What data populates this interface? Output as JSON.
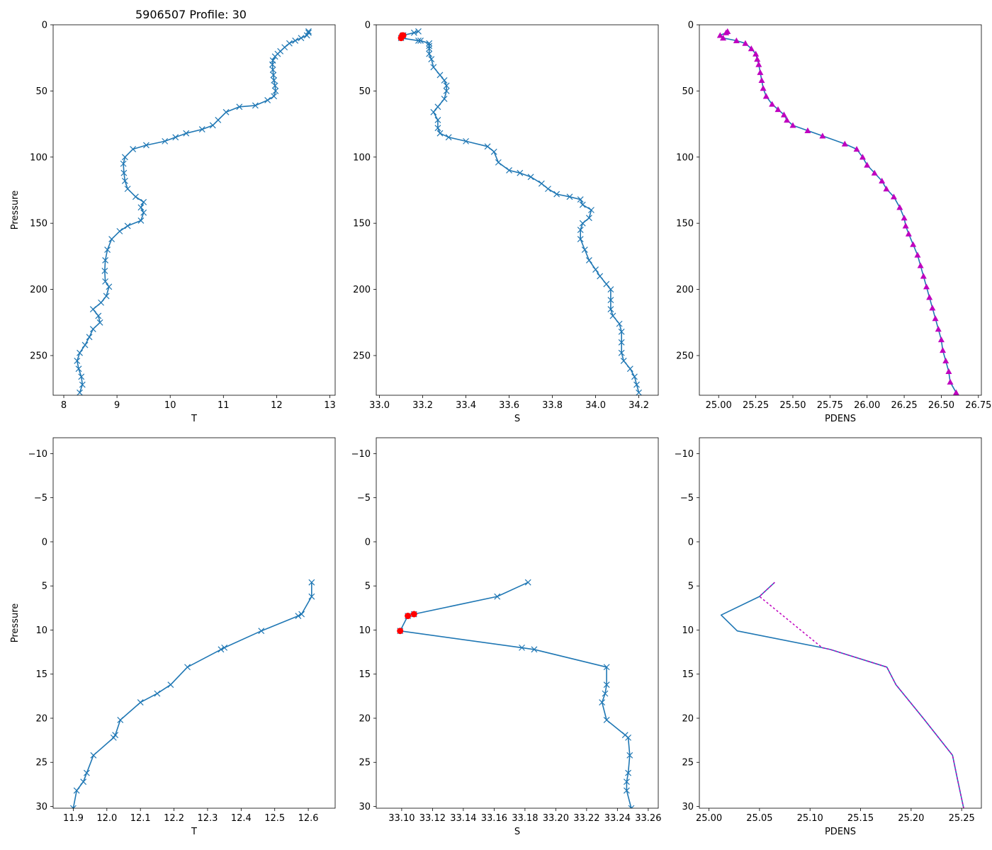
{
  "figure_title": "5906507 Profile: 30",
  "colors": {
    "line": "#1f77b4",
    "flag": "#ff0000",
    "density": "#bf00bf",
    "axis": "#000000"
  },
  "chart_data": [
    {
      "id": "top-temperature",
      "type": "line",
      "xlabel": "T",
      "ylabel": "Pressure",
      "xlim": [
        7.8,
        13.1
      ],
      "ylim": [
        280,
        0
      ],
      "xticks": [
        8,
        9,
        10,
        11,
        12,
        13
      ],
      "yticks": [
        0,
        50,
        100,
        150,
        200,
        250
      ],
      "x_tick_labels": [
        "8",
        "9",
        "10",
        "11",
        "12",
        "13"
      ],
      "y_tick_labels": [
        "0",
        "50",
        "100",
        "150",
        "200",
        "250"
      ],
      "marker": "x",
      "points": [
        [
          12.6,
          5
        ],
        [
          12.6,
          6
        ],
        [
          12.57,
          8
        ],
        [
          12.46,
          10
        ],
        [
          12.35,
          12
        ],
        [
          12.24,
          14
        ],
        [
          12.15,
          17
        ],
        [
          12.07,
          20
        ],
        [
          12.02,
          22
        ],
        [
          11.97,
          24
        ],
        [
          11.93,
          27
        ],
        [
          11.92,
          30
        ],
        [
          11.93,
          34
        ],
        [
          11.94,
          38
        ],
        [
          11.95,
          42
        ],
        [
          11.97,
          46
        ],
        [
          11.98,
          50
        ],
        [
          11.95,
          54
        ],
        [
          11.83,
          57
        ],
        [
          11.6,
          61
        ],
        [
          11.3,
          62
        ],
        [
          11.05,
          66
        ],
        [
          10.9,
          72
        ],
        [
          10.8,
          76
        ],
        [
          10.6,
          79
        ],
        [
          10.3,
          82
        ],
        [
          10.1,
          85
        ],
        [
          9.9,
          88
        ],
        [
          9.55,
          91
        ],
        [
          9.3,
          94
        ],
        [
          9.15,
          100
        ],
        [
          9.12,
          105
        ],
        [
          9.13,
          112
        ],
        [
          9.15,
          118
        ],
        [
          9.2,
          124
        ],
        [
          9.35,
          130
        ],
        [
          9.5,
          134
        ],
        [
          9.45,
          138
        ],
        [
          9.5,
          142
        ],
        [
          9.45,
          148
        ],
        [
          9.2,
          152
        ],
        [
          9.05,
          156
        ],
        [
          8.9,
          162
        ],
        [
          8.82,
          170
        ],
        [
          8.78,
          178
        ],
        [
          8.77,
          186
        ],
        [
          8.78,
          194
        ],
        [
          8.85,
          198
        ],
        [
          8.8,
          205
        ],
        [
          8.7,
          210
        ],
        [
          8.55,
          215
        ],
        [
          8.65,
          220
        ],
        [
          8.68,
          225
        ],
        [
          8.55,
          230
        ],
        [
          8.48,
          236
        ],
        [
          8.4,
          242
        ],
        [
          8.3,
          248
        ],
        [
          8.25,
          254
        ],
        [
          8.28,
          260
        ],
        [
          8.33,
          266
        ],
        [
          8.35,
          272
        ],
        [
          8.3,
          278
        ]
      ],
      "flagged": []
    },
    {
      "id": "top-salinity",
      "type": "line",
      "xlabel": "S",
      "ylabel": "",
      "xlim": [
        32.985,
        34.29
      ],
      "ylim": [
        280,
        0
      ],
      "xticks": [
        33.0,
        33.2,
        33.4,
        33.6,
        33.8,
        34.0,
        34.2
      ],
      "yticks": [
        0,
        50,
        100,
        150,
        200,
        250
      ],
      "x_tick_labels": [
        "33.0",
        "33.2",
        "33.4",
        "33.6",
        "33.8",
        "34.0",
        "34.2"
      ],
      "y_tick_labels": [
        "0",
        "50",
        "100",
        "150",
        "200",
        "250"
      ],
      "marker": "x",
      "points": [
        [
          33.18,
          5
        ],
        [
          33.16,
          6
        ],
        [
          33.11,
          8
        ],
        [
          33.1,
          10
        ],
        [
          33.18,
          12
        ],
        [
          33.19,
          12
        ],
        [
          33.23,
          14
        ],
        [
          33.23,
          16
        ],
        [
          33.23,
          18
        ],
        [
          33.23,
          22
        ],
        [
          33.24,
          26
        ],
        [
          33.25,
          32
        ],
        [
          33.28,
          38
        ],
        [
          33.3,
          42
        ],
        [
          33.31,
          46
        ],
        [
          33.31,
          50
        ],
        [
          33.3,
          56
        ],
        [
          33.27,
          62
        ],
        [
          33.25,
          66
        ],
        [
          33.27,
          72
        ],
        [
          33.27,
          78
        ],
        [
          33.28,
          82
        ],
        [
          33.32,
          85
        ],
        [
          33.4,
          88
        ],
        [
          33.5,
          92
        ],
        [
          33.53,
          96
        ],
        [
          33.55,
          104
        ],
        [
          33.6,
          110
        ],
        [
          33.65,
          112
        ],
        [
          33.7,
          115
        ],
        [
          33.75,
          120
        ],
        [
          33.78,
          124
        ],
        [
          33.82,
          128
        ],
        [
          33.88,
          130
        ],
        [
          33.93,
          132
        ],
        [
          33.94,
          136
        ],
        [
          33.98,
          140
        ],
        [
          33.97,
          146
        ],
        [
          33.94,
          150
        ],
        [
          33.93,
          155
        ],
        [
          33.93,
          162
        ],
        [
          33.95,
          170
        ],
        [
          33.97,
          178
        ],
        [
          34.0,
          185
        ],
        [
          34.02,
          190
        ],
        [
          34.05,
          196
        ],
        [
          34.07,
          200
        ],
        [
          34.07,
          208
        ],
        [
          34.07,
          215
        ],
        [
          34.08,
          220
        ],
        [
          34.11,
          226
        ],
        [
          34.12,
          232
        ],
        [
          34.12,
          240
        ],
        [
          34.12,
          248
        ],
        [
          34.13,
          254
        ],
        [
          34.16,
          260
        ],
        [
          34.18,
          266
        ],
        [
          34.19,
          272
        ],
        [
          34.2,
          278
        ]
      ],
      "flagged": [
        [
          33.11,
          8
        ],
        [
          33.105,
          8
        ],
        [
          33.1,
          10
        ]
      ]
    },
    {
      "id": "top-density",
      "type": "line",
      "xlabel": "PDENS",
      "ylabel": "",
      "xlim": [
        24.87,
        26.77
      ],
      "ylim": [
        280,
        0
      ],
      "xticks": [
        25.0,
        25.25,
        25.5,
        25.75,
        26.0,
        26.25,
        26.5,
        26.75
      ],
      "yticks": [
        0,
        50,
        100,
        150,
        200,
        250
      ],
      "x_tick_labels": [
        "25.00",
        "25.25",
        "25.50",
        "25.75",
        "26.00",
        "26.25",
        "26.50",
        "26.75"
      ],
      "y_tick_labels": [
        "0",
        "50",
        "100",
        "150",
        "200",
        "250"
      ],
      "marker": "triangle",
      "points": [
        [
          25.06,
          5
        ],
        [
          25.05,
          6
        ],
        [
          25.01,
          8
        ],
        [
          25.03,
          10
        ],
        [
          25.12,
          12
        ],
        [
          25.18,
          14
        ],
        [
          25.22,
          18
        ],
        [
          25.25,
          22
        ],
        [
          25.26,
          26
        ],
        [
          25.27,
          30
        ],
        [
          25.28,
          36
        ],
        [
          25.29,
          42
        ],
        [
          25.3,
          48
        ],
        [
          25.32,
          54
        ],
        [
          25.36,
          60
        ],
        [
          25.4,
          64
        ],
        [
          25.44,
          68
        ],
        [
          25.46,
          72
        ],
        [
          25.5,
          76
        ],
        [
          25.6,
          80
        ],
        [
          25.7,
          84
        ],
        [
          25.85,
          90
        ],
        [
          25.93,
          94
        ],
        [
          25.97,
          100
        ],
        [
          26.0,
          106
        ],
        [
          26.05,
          112
        ],
        [
          26.1,
          118
        ],
        [
          26.13,
          124
        ],
        [
          26.18,
          130
        ],
        [
          26.22,
          138
        ],
        [
          26.25,
          146
        ],
        [
          26.26,
          152
        ],
        [
          26.28,
          158
        ],
        [
          26.31,
          166
        ],
        [
          26.34,
          174
        ],
        [
          26.36,
          182
        ],
        [
          26.38,
          190
        ],
        [
          26.4,
          198
        ],
        [
          26.42,
          206
        ],
        [
          26.44,
          214
        ],
        [
          26.46,
          222
        ],
        [
          26.48,
          230
        ],
        [
          26.5,
          238
        ],
        [
          26.51,
          246
        ],
        [
          26.53,
          254
        ],
        [
          26.55,
          262
        ],
        [
          26.56,
          270
        ],
        [
          26.6,
          278
        ]
      ],
      "flagged": []
    },
    {
      "id": "bottom-temperature",
      "type": "line",
      "xlabel": "T",
      "ylabel": "Pressure",
      "xlim": [
        11.84,
        12.68
      ],
      "ylim": [
        30.2,
        -11.8
      ],
      "xticks": [
        11.9,
        12.0,
        12.1,
        12.2,
        12.3,
        12.4,
        12.5,
        12.6
      ],
      "yticks": [
        -10,
        -5,
        0,
        5,
        10,
        15,
        20,
        25,
        30
      ],
      "x_tick_labels": [
        "11.9",
        "12.0",
        "12.1",
        "12.2",
        "12.3",
        "12.4",
        "12.5",
        "12.6"
      ],
      "y_tick_labels": [
        "−10",
        "−5",
        "0",
        "5",
        "10",
        "15",
        "20",
        "25",
        "30"
      ],
      "marker": "x",
      "points": [
        [
          12.61,
          4.6
        ],
        [
          12.61,
          6.2
        ],
        [
          12.58,
          8.2
        ],
        [
          12.57,
          8.4
        ],
        [
          12.46,
          10.1
        ],
        [
          12.35,
          12.0
        ],
        [
          12.34,
          12.2
        ],
        [
          12.24,
          14.2
        ],
        [
          12.19,
          16.2
        ],
        [
          12.15,
          17.2
        ],
        [
          12.1,
          18.2
        ],
        [
          12.04,
          20.2
        ],
        [
          12.025,
          21.9
        ],
        [
          12.02,
          22.2
        ],
        [
          11.96,
          24.2
        ],
        [
          11.94,
          26.2
        ],
        [
          11.93,
          27.2
        ],
        [
          11.91,
          28.2
        ],
        [
          11.9,
          30.2
        ]
      ],
      "flagged": []
    },
    {
      "id": "bottom-salinity",
      "type": "line",
      "xlabel": "S",
      "ylabel": "",
      "xlim": [
        33.0835,
        33.2665
      ],
      "ylim": [
        30.2,
        -11.8
      ],
      "xticks": [
        33.1,
        33.12,
        33.14,
        33.16,
        33.18,
        33.2,
        33.22,
        33.24,
        33.26
      ],
      "yticks": [
        -10,
        -5,
        0,
        5,
        10,
        15,
        20,
        25,
        30
      ],
      "x_tick_labels": [
        "33.10",
        "33.12",
        "33.14",
        "33.16",
        "33.18",
        "33.20",
        "33.22",
        "33.24",
        "33.26"
      ],
      "y_tick_labels": [
        "−10",
        "−5",
        "0",
        "5",
        "10",
        "15",
        "20",
        "25",
        "30"
      ],
      "marker": "x",
      "points": [
        [
          33.182,
          4.6
        ],
        [
          33.162,
          6.2
        ],
        [
          33.108,
          8.2
        ],
        [
          33.104,
          8.4
        ],
        [
          33.099,
          10.1
        ],
        [
          33.178,
          12.0
        ],
        [
          33.186,
          12.2
        ],
        [
          33.233,
          14.2
        ],
        [
          33.233,
          16.2
        ],
        [
          33.232,
          17.2
        ],
        [
          33.23,
          18.2
        ],
        [
          33.233,
          20.2
        ],
        [
          33.245,
          21.9
        ],
        [
          33.247,
          22.2
        ],
        [
          33.248,
          24.2
        ],
        [
          33.247,
          26.2
        ],
        [
          33.246,
          27.2
        ],
        [
          33.246,
          28.2
        ],
        [
          33.249,
          30.2
        ]
      ],
      "flagged": [
        [
          33.108,
          8.2
        ],
        [
          33.104,
          8.4
        ],
        [
          33.099,
          10.1
        ]
      ]
    },
    {
      "id": "bottom-density",
      "type": "line",
      "xlabel": "PDENS",
      "ylabel": "",
      "xlim": [
        24.9905,
        25.2695
      ],
      "ylim": [
        30.2,
        -11.8
      ],
      "xticks": [
        25.0,
        25.05,
        25.1,
        25.15,
        25.2,
        25.25
      ],
      "yticks": [
        -10,
        -5,
        0,
        5,
        10,
        15,
        20,
        25,
        30
      ],
      "x_tick_labels": [
        "25.00",
        "25.05",
        "25.10",
        "25.15",
        "25.20",
        "25.25"
      ],
      "y_tick_labels": [
        "−10",
        "−5",
        "0",
        "5",
        "10",
        "15",
        "20",
        "25",
        "30"
      ],
      "marker": "none",
      "points": [
        [
          25.065,
          4.6
        ],
        [
          25.05,
          6.2
        ],
        [
          25.012,
          8.3
        ],
        [
          25.028,
          10.1
        ],
        [
          25.112,
          12.0
        ],
        [
          25.12,
          12.2
        ],
        [
          25.176,
          14.2
        ],
        [
          25.185,
          16.2
        ],
        [
          25.212,
          20.0
        ],
        [
          25.241,
          24.2
        ],
        [
          25.246,
          27.0
        ],
        [
          25.252,
          30.2
        ]
      ],
      "overlay": [
        [
          25.065,
          4.6
        ],
        [
          25.05,
          6.2
        ],
        [
          25.112,
          12.0
        ],
        [
          25.12,
          12.2
        ],
        [
          25.176,
          14.2
        ],
        [
          25.185,
          16.2
        ],
        [
          25.212,
          20.0
        ],
        [
          25.241,
          24.2
        ],
        [
          25.246,
          27.0
        ],
        [
          25.252,
          30.2
        ]
      ],
      "flagged": []
    }
  ]
}
